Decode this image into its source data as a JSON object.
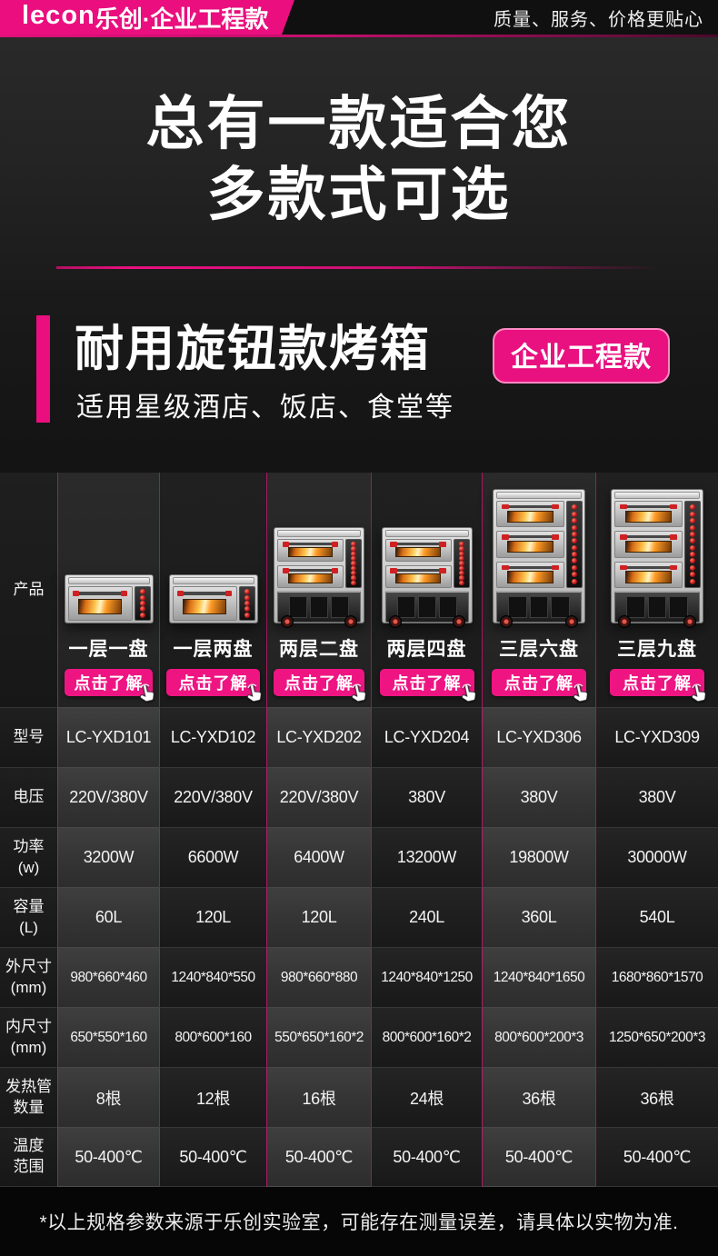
{
  "header": {
    "brand": "lecon",
    "brand_suffix": "乐创·企业工程款",
    "tagline": "质量、服务、价格更贴心"
  },
  "hero": {
    "title_line1": "总有一款适合您",
    "title_line2": "多款式可选"
  },
  "section": {
    "title": "耐用旋钮款烤箱",
    "badge": "企业工程款",
    "subtitle": "适用星级酒店、饭店、食堂等"
  },
  "table": {
    "product_row_label": "产品",
    "cta_label": "点击了解",
    "spec_rows": [
      {
        "label": "型号",
        "sub": "",
        "key": "model"
      },
      {
        "label": "电压",
        "sub": "",
        "key": "voltage"
      },
      {
        "label": "功率",
        "sub": "(w)",
        "key": "power"
      },
      {
        "label": "容量",
        "sub": "(L)",
        "key": "capacity"
      },
      {
        "label": "外尺寸",
        "sub": "(mm)",
        "key": "outer"
      },
      {
        "label": "内尺寸",
        "sub": "(mm)",
        "key": "inner"
      },
      {
        "label": "发热管",
        "sub": "数量",
        "key": "tubes"
      },
      {
        "label": "温度",
        "sub": "范围",
        "key": "temp"
      }
    ],
    "products": [
      {
        "name": "一层一盘",
        "model": "LC-YXD101",
        "voltage": "220V/380V",
        "power": "3200W",
        "capacity": "60L",
        "outer": "980*660*460",
        "inner": "650*550*160",
        "tubes": "8根",
        "temp": "50-400℃",
        "oven": {
          "decks": 1,
          "stand": false
        }
      },
      {
        "name": "一层两盘",
        "model": "LC-YXD102",
        "voltage": "220V/380V",
        "power": "6600W",
        "capacity": "120L",
        "outer": "1240*840*550",
        "inner": "800*600*160",
        "tubes": "12根",
        "temp": "50-400℃",
        "oven": {
          "decks": 1,
          "stand": false
        }
      },
      {
        "name": "两层二盘",
        "model": "LC-YXD202",
        "voltage": "220V/380V",
        "power": "6400W",
        "capacity": "120L",
        "outer": "980*660*880",
        "inner": "550*650*160*2",
        "tubes": "16根",
        "temp": "50-400℃",
        "oven": {
          "decks": 2,
          "stand": true
        }
      },
      {
        "name": "两层四盘",
        "model": "LC-YXD204",
        "voltage": "380V",
        "power": "13200W",
        "capacity": "240L",
        "outer": "1240*840*1250",
        "inner": "800*600*160*2",
        "tubes": "24根",
        "temp": "50-400℃",
        "oven": {
          "decks": 2,
          "stand": true
        }
      },
      {
        "name": "三层六盘",
        "model": "LC-YXD306",
        "voltage": "380V",
        "power": "19800W",
        "capacity": "360L",
        "outer": "1240*840*1650",
        "inner": "800*600*200*3",
        "tubes": "36根",
        "temp": "50-400℃",
        "oven": {
          "decks": 3,
          "stand": true
        }
      },
      {
        "name": "三层九盘",
        "model": "LC-YXD309",
        "voltage": "380V",
        "power": "30000W",
        "capacity": "540L",
        "outer": "1680*860*1570",
        "inner": "1250*650*200*3",
        "tubes": "36根",
        "temp": "50-400℃",
        "oven": {
          "decks": 3,
          "stand": true
        }
      }
    ]
  },
  "footer": {
    "note": "*以上规格参数来源于乐创实验室，可能存在测量误差，请具体以实物为准."
  },
  "colors": {
    "accent": "#ea0e7e",
    "cta": "#ee1583",
    "divider_pink": "rgba(236,18,128,0.65)"
  }
}
